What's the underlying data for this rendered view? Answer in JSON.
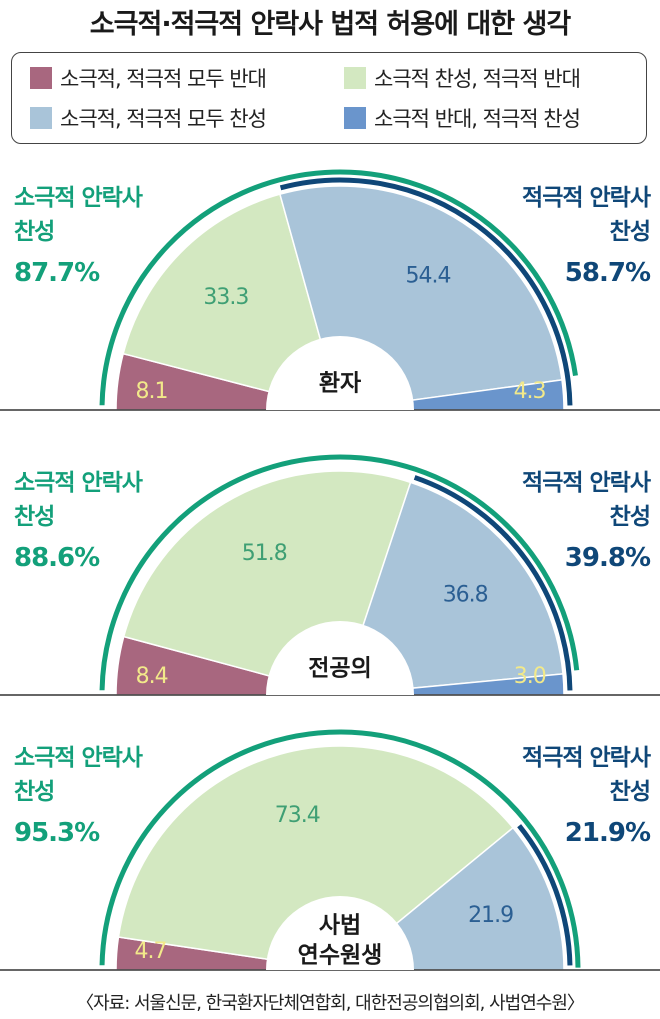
{
  "page": {
    "title": "소극적·적극적 안락사 법적 허용에 대한 생각",
    "source": "〈자료: 서울신문, 한국환자단체연합회, 대한전공의협의회, 사법연수원〉"
  },
  "colors": {
    "both_oppose": "#a8677f",
    "passive_for_active_against": "#d3e8c1",
    "both_favor": "#a9c4d9",
    "passive_against_active_for": "#6a95cc",
    "passive_accent": "#13a07a",
    "active_accent": "#0f4778",
    "value_light": "#f2e98a",
    "value_green": "#3f9f74",
    "value_blue": "#2b5f93"
  },
  "labels": {
    "passive_label_line1": "소극적 안락사",
    "passive_label_line2": "찬성",
    "active_label_line1": "적극적 안락사",
    "active_label_line2": "찬성"
  },
  "chart_data": {
    "type": "pie",
    "variant": "semicircle",
    "title": "소극적·적극적 안락사 법적 허용에 대한 생각",
    "unit": "%",
    "legend_placement": "top",
    "categories": [
      "소극적, 적극적 모두 반대",
      "소극적 찬성, 적극적 반대",
      "소극적, 적극적 모두 찬성",
      "소극적 반대, 적극적 찬성"
    ],
    "groups": [
      {
        "name": "환자",
        "values": [
          8.1,
          33.3,
          54.4,
          4.3
        ],
        "passive_favor": "87.7%",
        "active_favor": "58.7%"
      },
      {
        "name": "전공의",
        "values": [
          8.4,
          51.8,
          36.8,
          3.0
        ],
        "passive_favor": "88.6%",
        "active_favor": "39.8%"
      },
      {
        "name": "사법 연수원생",
        "name_lines": [
          "사법",
          "연수원생"
        ],
        "values": [
          4.7,
          73.4,
          21.9,
          0
        ],
        "passive_favor": "95.3%",
        "active_favor": "21.9%"
      }
    ]
  }
}
